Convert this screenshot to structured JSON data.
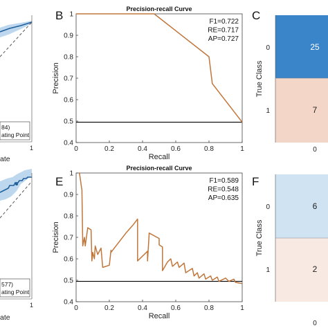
{
  "colors": {
    "pr_curve": "#c0763a",
    "baseline": "#000000",
    "roc_curve": "#1f5f9a",
    "roc_band": "#bcd7ee",
    "cm_high": "#3a84c9",
    "cm_low_blue": "#cfe3f3",
    "cm_low_red": "#f4d6c8",
    "cm_very_low_red": "#f8e9e2"
  },
  "panels": {
    "B": "B",
    "C": "C",
    "E": "E",
    "F": "F"
  },
  "left_fragments": {
    "top_legend_1": "84)",
    "top_legend_2": "ating Point",
    "top_xlabel": "ate",
    "top_tick": "1",
    "bottom_legend_1": "577)",
    "bottom_legend_2": "ating Point",
    "bottom_xlabel": "ate",
    "bottom_tick": "1"
  },
  "confusion": {
    "ylabel": "True Class",
    "top": {
      "row_labels": [
        "0",
        "1"
      ],
      "values": [
        "25",
        "7"
      ],
      "col_label": "0"
    },
    "bottom": {
      "row_labels": [
        "0",
        "1"
      ],
      "values": [
        "6",
        "2"
      ],
      "col_label": "0"
    }
  },
  "chart_data": [
    {
      "type": "line",
      "panel": "B",
      "title": "Precision-recall Curve",
      "xlabel": "Recall",
      "ylabel": "Precision",
      "xlim": [
        0,
        1
      ],
      "ylim": [
        0.4,
        1
      ],
      "xticks": [
        "0",
        "0.2",
        "0.4",
        "0.6",
        "0.8",
        "1"
      ],
      "yticks": [
        "0.4",
        "0.5",
        "0.6",
        "0.7",
        "0.8",
        "0.9",
        "1"
      ],
      "stats": [
        "F1=0.722",
        "RE=0.717",
        "AP=0.727"
      ],
      "baseline": 0.495,
      "series": [
        {
          "x": [
            0,
            0.47,
            0.8,
            0.82,
            1.0
          ],
          "y": [
            1.0,
            1.0,
            0.8,
            0.675,
            0.495
          ]
        }
      ]
    },
    {
      "type": "line",
      "panel": "E",
      "title": "Precision-recall Curve",
      "xlabel": "Recall",
      "ylabel": "Precision",
      "xlim": [
        0,
        1
      ],
      "ylim": [
        0.4,
        1
      ],
      "xticks": [
        "0",
        "0.2",
        "0.4",
        "0.6",
        "0.8",
        "1"
      ],
      "yticks": [
        "0.4",
        "0.5",
        "0.6",
        "0.7",
        "0.8",
        "0.9",
        "1"
      ],
      "stats": [
        "F1=0.589",
        "RE=0.548",
        "AP=0.635"
      ],
      "baseline": 0.495,
      "series": [
        {
          "x": [
            0.02,
            0.02,
            0.035,
            0.04,
            0.05,
            0.055,
            0.07,
            0.09,
            0.095,
            0.1,
            0.11,
            0.115,
            0.13,
            0.15,
            0.16,
            0.2,
            0.21,
            0.21,
            0.3,
            0.34,
            0.37,
            0.37,
            0.43,
            0.43,
            0.44,
            0.5,
            0.5,
            0.52,
            0.52,
            0.55,
            0.57,
            0.58,
            0.61,
            0.62,
            0.65,
            0.66,
            0.7,
            0.71,
            0.73,
            0.74,
            0.77,
            0.78,
            0.81,
            0.82,
            0.85,
            0.86,
            0.9,
            0.92,
            0.95,
            0.96,
            1.0
          ],
          "y": [
            0.995,
            1.0,
            0.92,
            0.66,
            0.7,
            0.66,
            0.745,
            0.735,
            0.59,
            0.63,
            0.6,
            0.66,
            0.62,
            0.65,
            0.56,
            0.57,
            0.64,
            0.63,
            0.72,
            0.755,
            0.785,
            0.59,
            0.635,
            0.59,
            0.72,
            0.695,
            0.665,
            0.655,
            0.545,
            0.585,
            0.6,
            0.565,
            0.585,
            0.56,
            0.58,
            0.535,
            0.555,
            0.52,
            0.535,
            0.51,
            0.53,
            0.505,
            0.52,
            0.5,
            0.515,
            0.495,
            0.51,
            0.495,
            0.505,
            0.49,
            0.485
          ]
        }
      ]
    }
  ]
}
